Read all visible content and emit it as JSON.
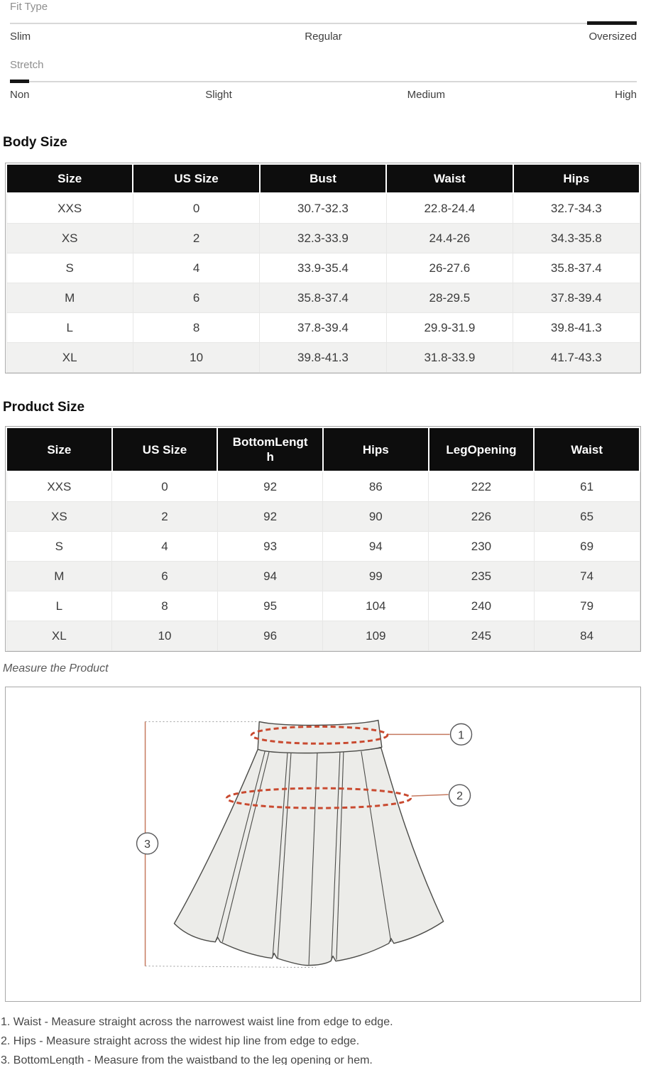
{
  "sliders": {
    "fit_type": {
      "label": "Fit Type",
      "options": [
        "Slim",
        "Regular",
        "Oversized"
      ],
      "selected": "Oversized"
    },
    "stretch": {
      "label": "Stretch",
      "options": [
        "Non",
        "Slight",
        "Medium",
        "High"
      ],
      "selected": "Non"
    }
  },
  "body_size": {
    "title": "Body Size",
    "columns": [
      "Size",
      "US Size",
      "Bust",
      "Waist",
      "Hips"
    ],
    "rows": [
      [
        "XXS",
        "0",
        "30.7-32.3",
        "22.8-24.4",
        "32.7-34.3"
      ],
      [
        "XS",
        "2",
        "32.3-33.9",
        "24.4-26",
        "34.3-35.8"
      ],
      [
        "S",
        "4",
        "33.9-35.4",
        "26-27.6",
        "35.8-37.4"
      ],
      [
        "M",
        "6",
        "35.8-37.4",
        "28-29.5",
        "37.8-39.4"
      ],
      [
        "L",
        "8",
        "37.8-39.4",
        "29.9-31.9",
        "39.8-41.3"
      ],
      [
        "XL",
        "10",
        "39.8-41.3",
        "31.8-33.9",
        "41.7-43.3"
      ]
    ]
  },
  "product_size": {
    "title": "Product Size",
    "columns": [
      "Size",
      "US Size",
      "BottomLength",
      "Hips",
      "LegOpening",
      "Waist"
    ],
    "rows": [
      [
        "XXS",
        "0",
        "92",
        "86",
        "222",
        "61"
      ],
      [
        "XS",
        "2",
        "92",
        "90",
        "226",
        "65"
      ],
      [
        "S",
        "4",
        "93",
        "94",
        "230",
        "69"
      ],
      [
        "M",
        "6",
        "94",
        "99",
        "235",
        "74"
      ],
      [
        "L",
        "8",
        "95",
        "104",
        "240",
        "79"
      ],
      [
        "XL",
        "10",
        "96",
        "109",
        "245",
        "84"
      ]
    ]
  },
  "measure": {
    "caption": "Measure the Product",
    "callouts": [
      "1",
      "2",
      "3"
    ],
    "notes": [
      "1. Waist - Measure straight across the narrowest waist line from edge to edge.",
      "2. Hips - Measure straight across the widest hip line from edge to edge.",
      "3. BottomLength - Measure from the waistband to the leg opening or hem."
    ]
  },
  "colors": {
    "accent_dashed": "#c94a30",
    "accent_line": "#c5795f",
    "header_bg": "#0d0d0d",
    "row_alt": "#f1f1f0"
  }
}
